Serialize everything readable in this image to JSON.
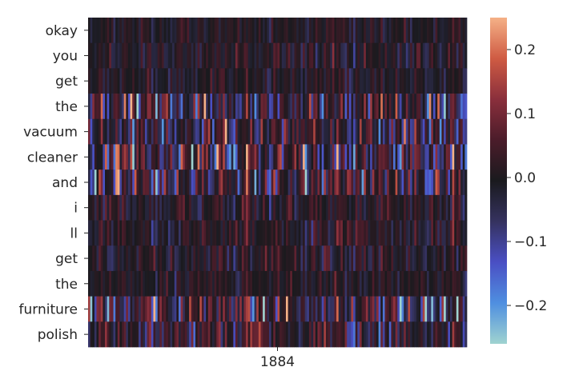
{
  "chart_data": {
    "type": "heatmap",
    "rows": [
      "okay",
      "you",
      "get",
      "the",
      "vacuum",
      "cleaner",
      "and",
      "i",
      "ll",
      "get",
      "the",
      "furniture",
      "polish"
    ],
    "x_tick_labels": [
      "1884"
    ],
    "n_columns": 180,
    "row_amplitude": [
      0.05,
      0.07,
      0.05,
      0.16,
      0.15,
      0.2,
      0.16,
      0.07,
      0.07,
      0.07,
      0.05,
      0.17,
      0.12
    ],
    "colorbar": {
      "min": -0.26,
      "max": 0.25,
      "ticks": [
        0.2,
        0.1,
        0.0,
        -0.1,
        -0.2
      ],
      "tick_labels": [
        "0.2",
        "0.1",
        "0.0",
        "−0.1",
        "−0.2"
      ]
    },
    "colormap": "icefire",
    "colormap_stops": [
      "#9fd3d0",
      "#4f8fe0",
      "#4a4fc4",
      "#35325f",
      "#1a1a1e",
      "#4b1c2a",
      "#8a2f3c",
      "#cf5b43",
      "#f5b187"
    ],
    "center": 0.0
  }
}
